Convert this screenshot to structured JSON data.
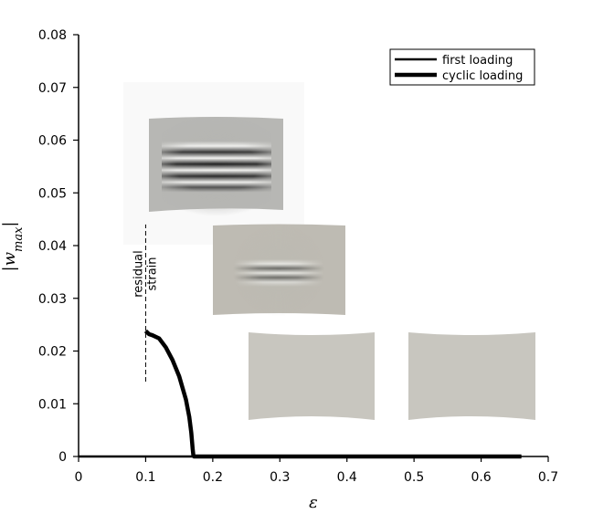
{
  "chart_data": {
    "type": "line",
    "xlabel": "ε",
    "ylabel": "|w_max|",
    "xlim": [
      0,
      0.7
    ],
    "ylim": [
      0,
      0.08
    ],
    "xticks": [
      {
        "value": 0,
        "label": "0"
      },
      {
        "value": 0.1,
        "label": "0.1"
      },
      {
        "value": 0.2,
        "label": "0.2"
      },
      {
        "value": 0.3,
        "label": "0.3"
      },
      {
        "value": 0.4,
        "label": "0.4"
      },
      {
        "value": 0.5,
        "label": "0.5"
      },
      {
        "value": 0.6,
        "label": "0.6"
      },
      {
        "value": 0.7,
        "label": "0.7"
      }
    ],
    "yticks": [
      {
        "value": 0,
        "label": "0"
      },
      {
        "value": 0.01,
        "label": "0.01"
      },
      {
        "value": 0.02,
        "label": "0.02"
      },
      {
        "value": 0.03,
        "label": "0.03"
      },
      {
        "value": 0.04,
        "label": "0.04"
      },
      {
        "value": 0.05,
        "label": "0.05"
      },
      {
        "value": 0.06,
        "label": "0.06"
      },
      {
        "value": 0.07,
        "label": "0.07"
      },
      {
        "value": 0.08,
        "label": "0.08"
      }
    ],
    "grid": false,
    "legend_position": "top-right",
    "series": [
      {
        "name": "first loading",
        "color": "#000000",
        "x": [
          0.0,
          0.05,
          0.1,
          0.15,
          0.17,
          0.2,
          0.3,
          0.4,
          0.5,
          0.6,
          0.66
        ],
        "y": [
          0.0,
          0.0,
          0.0,
          0.0,
          0.0,
          0.0,
          0.0,
          0.0,
          0.0,
          0.0,
          0.0
        ]
      },
      {
        "name": "cyclic loading",
        "color": "#000000",
        "x": [
          0.1,
          0.105,
          0.11,
          0.12,
          0.13,
          0.14,
          0.15,
          0.16,
          0.165,
          0.168,
          0.17,
          0.171,
          0.172,
          0.2,
          0.3,
          0.4,
          0.5,
          0.6,
          0.66
        ],
        "y": [
          0.0238,
          0.0232,
          0.023,
          0.0224,
          0.0207,
          0.0183,
          0.0152,
          0.0108,
          0.0075,
          0.0045,
          0.0015,
          0.0003,
          0.0,
          0.0,
          0.0,
          0.0,
          0.0,
          0.0,
          0.0
        ]
      }
    ],
    "annotations": [
      {
        "name": "residual-strain",
        "lines": [
          "residual",
          "strain"
        ],
        "x": 0.1,
        "y_from": 0.0142,
        "y_to": 0.044
      }
    ],
    "insets": [
      {
        "name": "inset-4-wrinkles",
        "wrinkles": 4
      },
      {
        "name": "inset-2-wrinkles",
        "wrinkles": 2
      },
      {
        "name": "inset-flat-1",
        "wrinkles": 0
      },
      {
        "name": "inset-flat-2",
        "wrinkles": 0
      }
    ]
  }
}
